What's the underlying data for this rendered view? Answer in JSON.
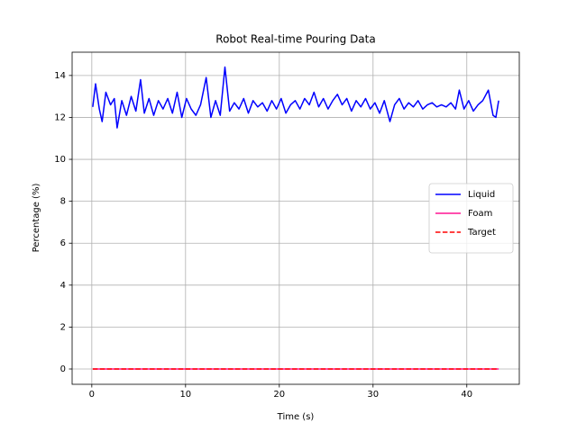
{
  "chart_data": {
    "type": "line",
    "title": "Robot Real-time Pouring Data",
    "xlabel": "Time (s)",
    "ylabel": "Percentage (%)",
    "xlim": [
      -2.1,
      45.6
    ],
    "ylim": [
      -0.73,
      15.11
    ],
    "xticks": [
      0,
      10,
      20,
      30,
      40
    ],
    "yticks": [
      0,
      2,
      4,
      6,
      8,
      10,
      12,
      14
    ],
    "grid": true,
    "legend": "center right",
    "series": [
      {
        "name": "Liquid",
        "color": "#0000ff",
        "style": "solid",
        "x": [
          0.1,
          0.4,
          0.8,
          1.1,
          1.5,
          2.0,
          2.4,
          2.7,
          3.2,
          3.7,
          4.2,
          4.7,
          5.2,
          5.6,
          6.1,
          6.6,
          7.1,
          7.6,
          8.1,
          8.6,
          9.1,
          9.6,
          10.1,
          10.6,
          11.1,
          11.6,
          12.2,
          12.7,
          13.2,
          13.7,
          14.2,
          14.7,
          15.2,
          15.7,
          16.2,
          16.7,
          17.2,
          17.7,
          18.2,
          18.7,
          19.2,
          19.7,
          20.2,
          20.7,
          21.2,
          21.7,
          22.2,
          22.7,
          23.2,
          23.7,
          24.2,
          24.7,
          25.2,
          25.7,
          26.2,
          26.7,
          27.2,
          27.7,
          28.2,
          28.7,
          29.2,
          29.7,
          30.2,
          30.7,
          31.2,
          31.8,
          32.3,
          32.8,
          33.3,
          33.8,
          34.3,
          34.8,
          35.3,
          35.8,
          36.3,
          36.8,
          37.3,
          37.8,
          38.3,
          38.8,
          39.2,
          39.7,
          40.2,
          40.7,
          41.2,
          41.7,
          42.3,
          42.8,
          43.1,
          43.4
        ],
        "values": [
          12.5,
          13.6,
          12.4,
          11.8,
          13.2,
          12.6,
          12.9,
          11.5,
          12.8,
          12.1,
          13.0,
          12.3,
          13.8,
          12.2,
          12.9,
          12.1,
          12.8,
          12.4,
          12.9,
          12.2,
          13.2,
          12.0,
          12.9,
          12.4,
          12.1,
          12.6,
          13.9,
          12.0,
          12.8,
          12.1,
          14.4,
          12.3,
          12.7,
          12.4,
          12.9,
          12.2,
          12.8,
          12.5,
          12.7,
          12.3,
          12.8,
          12.4,
          12.9,
          12.2,
          12.6,
          12.8,
          12.4,
          12.9,
          12.6,
          13.2,
          12.5,
          12.9,
          12.4,
          12.8,
          13.1,
          12.6,
          12.9,
          12.3,
          12.8,
          12.5,
          12.9,
          12.4,
          12.7,
          12.2,
          12.8,
          11.8,
          12.6,
          12.9,
          12.4,
          12.7,
          12.5,
          12.8,
          12.4,
          12.6,
          12.7,
          12.5,
          12.6,
          12.5,
          12.7,
          12.4,
          13.3,
          12.4,
          12.8,
          12.3,
          12.6,
          12.8,
          13.3,
          12.1,
          12.0,
          12.8
        ]
      },
      {
        "name": "Foam",
        "color": "#ff1493",
        "style": "solid",
        "x": [
          0.1,
          43.4
        ],
        "values": [
          0,
          0
        ]
      },
      {
        "name": "Target",
        "color": "#ff0000",
        "style": "dashed",
        "x": [
          0.1,
          43.4
        ],
        "values": [
          0,
          0
        ]
      }
    ]
  }
}
